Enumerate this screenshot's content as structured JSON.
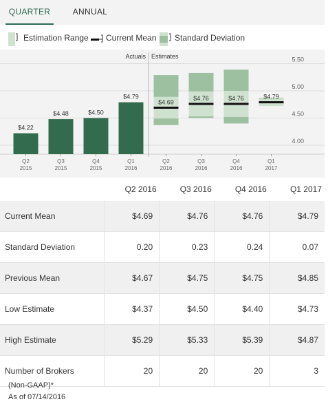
{
  "tabs": [
    {
      "label": "QUARTER",
      "active": true
    },
    {
      "label": "ANNUAL",
      "active": false
    }
  ],
  "legend": {
    "estimation_range": "Estimation Range",
    "current_mean": "Current Mean",
    "standard_deviation": "Standard Deviation"
  },
  "colors": {
    "actual_bar": "#336b4f",
    "range_fill": "#9cc0a0",
    "stddev_fill": "#cfe1cf",
    "mean_line": "#111111",
    "panel_bg": "#f3f3f3",
    "accent": "#2e6950"
  },
  "chart_data": {
    "type": "bar",
    "actuals_label": "Actuals",
    "estimates_label": "Estimates",
    "actuals": {
      "categories": [
        [
          "Q2",
          "2015"
        ],
        [
          "Q3",
          "2015"
        ],
        [
          "Q4",
          "2015"
        ],
        [
          "Q1",
          "2016"
        ]
      ],
      "values": [
        4.22,
        4.48,
        4.5,
        4.79
      ],
      "value_labels": [
        "$4.22",
        "$4.48",
        "$4.50",
        "$4.79"
      ]
    },
    "estimates": {
      "categories": [
        [
          "Q2",
          "2016"
        ],
        [
          "Q3",
          "2016"
        ],
        [
          "Q4",
          "2016"
        ],
        [
          "Q1",
          "2017"
        ]
      ],
      "mean": [
        4.69,
        4.76,
        4.76,
        4.79
      ],
      "mean_labels": [
        "$4.69",
        "$4.76",
        "$4.76",
        "$4.79"
      ],
      "low": [
        4.37,
        4.5,
        4.4,
        4.73
      ],
      "high": [
        5.29,
        5.33,
        5.39,
        4.87
      ],
      "std_dev": [
        0.2,
        0.23,
        0.24,
        0.07
      ]
    },
    "y_ticks": [
      "5.50",
      "5.00",
      "4.50",
      "4.00"
    ],
    "y_tick_values": [
      5.5,
      5.0,
      4.5,
      4.0
    ],
    "ylim": [
      3.8,
      5.55
    ],
    "grid": true
  },
  "table": {
    "columns": [
      "Q2 2016",
      "Q3 2016",
      "Q4 2016",
      "Q1 2017"
    ],
    "rows": [
      {
        "label": "Current Mean",
        "values": [
          "$4.69",
          "$4.76",
          "$4.76",
          "$4.79"
        ]
      },
      {
        "label": "Standard Deviation",
        "values": [
          "0.20",
          "0.23",
          "0.24",
          "0.07"
        ]
      },
      {
        "label": "Previous Mean",
        "values": [
          "$4.67",
          "$4.75",
          "$4.75",
          "$4.85"
        ]
      },
      {
        "label": "Low Estimate",
        "values": [
          "$4.37",
          "$4.50",
          "$4.40",
          "$4.73"
        ]
      },
      {
        "label": "High Estimate",
        "values": [
          "$5.29",
          "$5.33",
          "$5.39",
          "$4.87"
        ]
      },
      {
        "label": "Number of Brokers",
        "values": [
          "20",
          "20",
          "20",
          "3"
        ]
      }
    ]
  },
  "footnotes": {
    "basis": "(Non-GAAP)*",
    "as_of": "As of 07/14/2016"
  }
}
